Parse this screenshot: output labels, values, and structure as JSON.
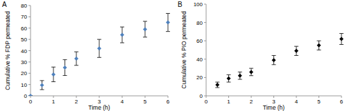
{
  "chart_data": [
    {
      "type": "scatter",
      "title": "A",
      "x_label": "Time (h)",
      "y_label": "Cumulative % FDP permeated",
      "x": [
        0,
        0.5,
        1,
        1.5,
        2,
        3,
        4,
        5,
        6
      ],
      "values": [
        0,
        9.5,
        19,
        25,
        33,
        42,
        54,
        59,
        65
      ],
      "errors": [
        0,
        4,
        6.5,
        7,
        6,
        8,
        7,
        7,
        8
      ],
      "color": "#4f81bd",
      "marker": "diamond",
      "xlim": [
        0,
        6
      ],
      "xticks": [
        0,
        1,
        2,
        3,
        4,
        5,
        6
      ],
      "ylim": [
        0,
        80
      ],
      "yticks": [
        0,
        10,
        20,
        30,
        40,
        50,
        60,
        70,
        80
      ],
      "grid": false
    },
    {
      "type": "scatter",
      "title": "B",
      "x_label": "Time (h)",
      "y_label": "Cumulative % PIO permeated",
      "x": [
        0.5,
        1,
        1.5,
        2,
        3,
        4,
        5,
        6
      ],
      "values": [
        12,
        19,
        22,
        26,
        39,
        49,
        55,
        62
      ],
      "errors": [
        3,
        4,
        4,
        4,
        5,
        5,
        5,
        6
      ],
      "color": "#000000",
      "marker": "diamond",
      "xlim": [
        0,
        6
      ],
      "xticks": [
        0,
        1,
        2,
        3,
        4,
        5,
        6
      ],
      "ylim": [
        0,
        100
      ],
      "yticks": [
        0,
        20,
        40,
        60,
        80,
        100
      ],
      "grid": false
    }
  ]
}
